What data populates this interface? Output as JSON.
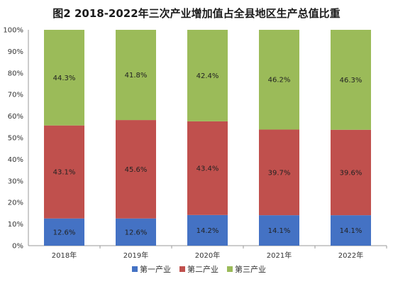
{
  "chart_data": {
    "type": "bar",
    "stacked": true,
    "percent": true,
    "title": "图2   2018-2022年三次产业增加值占全县地区生产总值比重",
    "categories": [
      "2018年",
      "2019年",
      "2020年",
      "2021年",
      "2022年"
    ],
    "series": [
      {
        "name": "第一产业",
        "color": "#4472C4",
        "values": [
          12.6,
          12.6,
          14.2,
          14.1,
          14.1
        ],
        "labels": [
          "12.6%",
          "12.6%",
          "14.2%",
          "14.1%",
          "14.1%"
        ]
      },
      {
        "name": "第二产业",
        "color": "#C0504D",
        "values": [
          43.1,
          45.6,
          43.4,
          39.7,
          39.6
        ],
        "labels": [
          "43.1%",
          "45.6%",
          "43.4%",
          "39.7%",
          "39.6%"
        ]
      },
      {
        "name": "第三产业",
        "color": "#9BBB59",
        "values": [
          44.3,
          41.8,
          42.4,
          46.2,
          46.3
        ],
        "labels": [
          "44.3%",
          "41.8%",
          "42.4%",
          "46.2%",
          "46.3%"
        ]
      }
    ],
    "ylim": [
      0,
      100
    ],
    "yticks": [
      "0%",
      "10%",
      "20%",
      "30%",
      "40%",
      "50%",
      "60%",
      "70%",
      "80%",
      "90%",
      "100%"
    ],
    "grid": false,
    "legend_position": "bottom"
  }
}
